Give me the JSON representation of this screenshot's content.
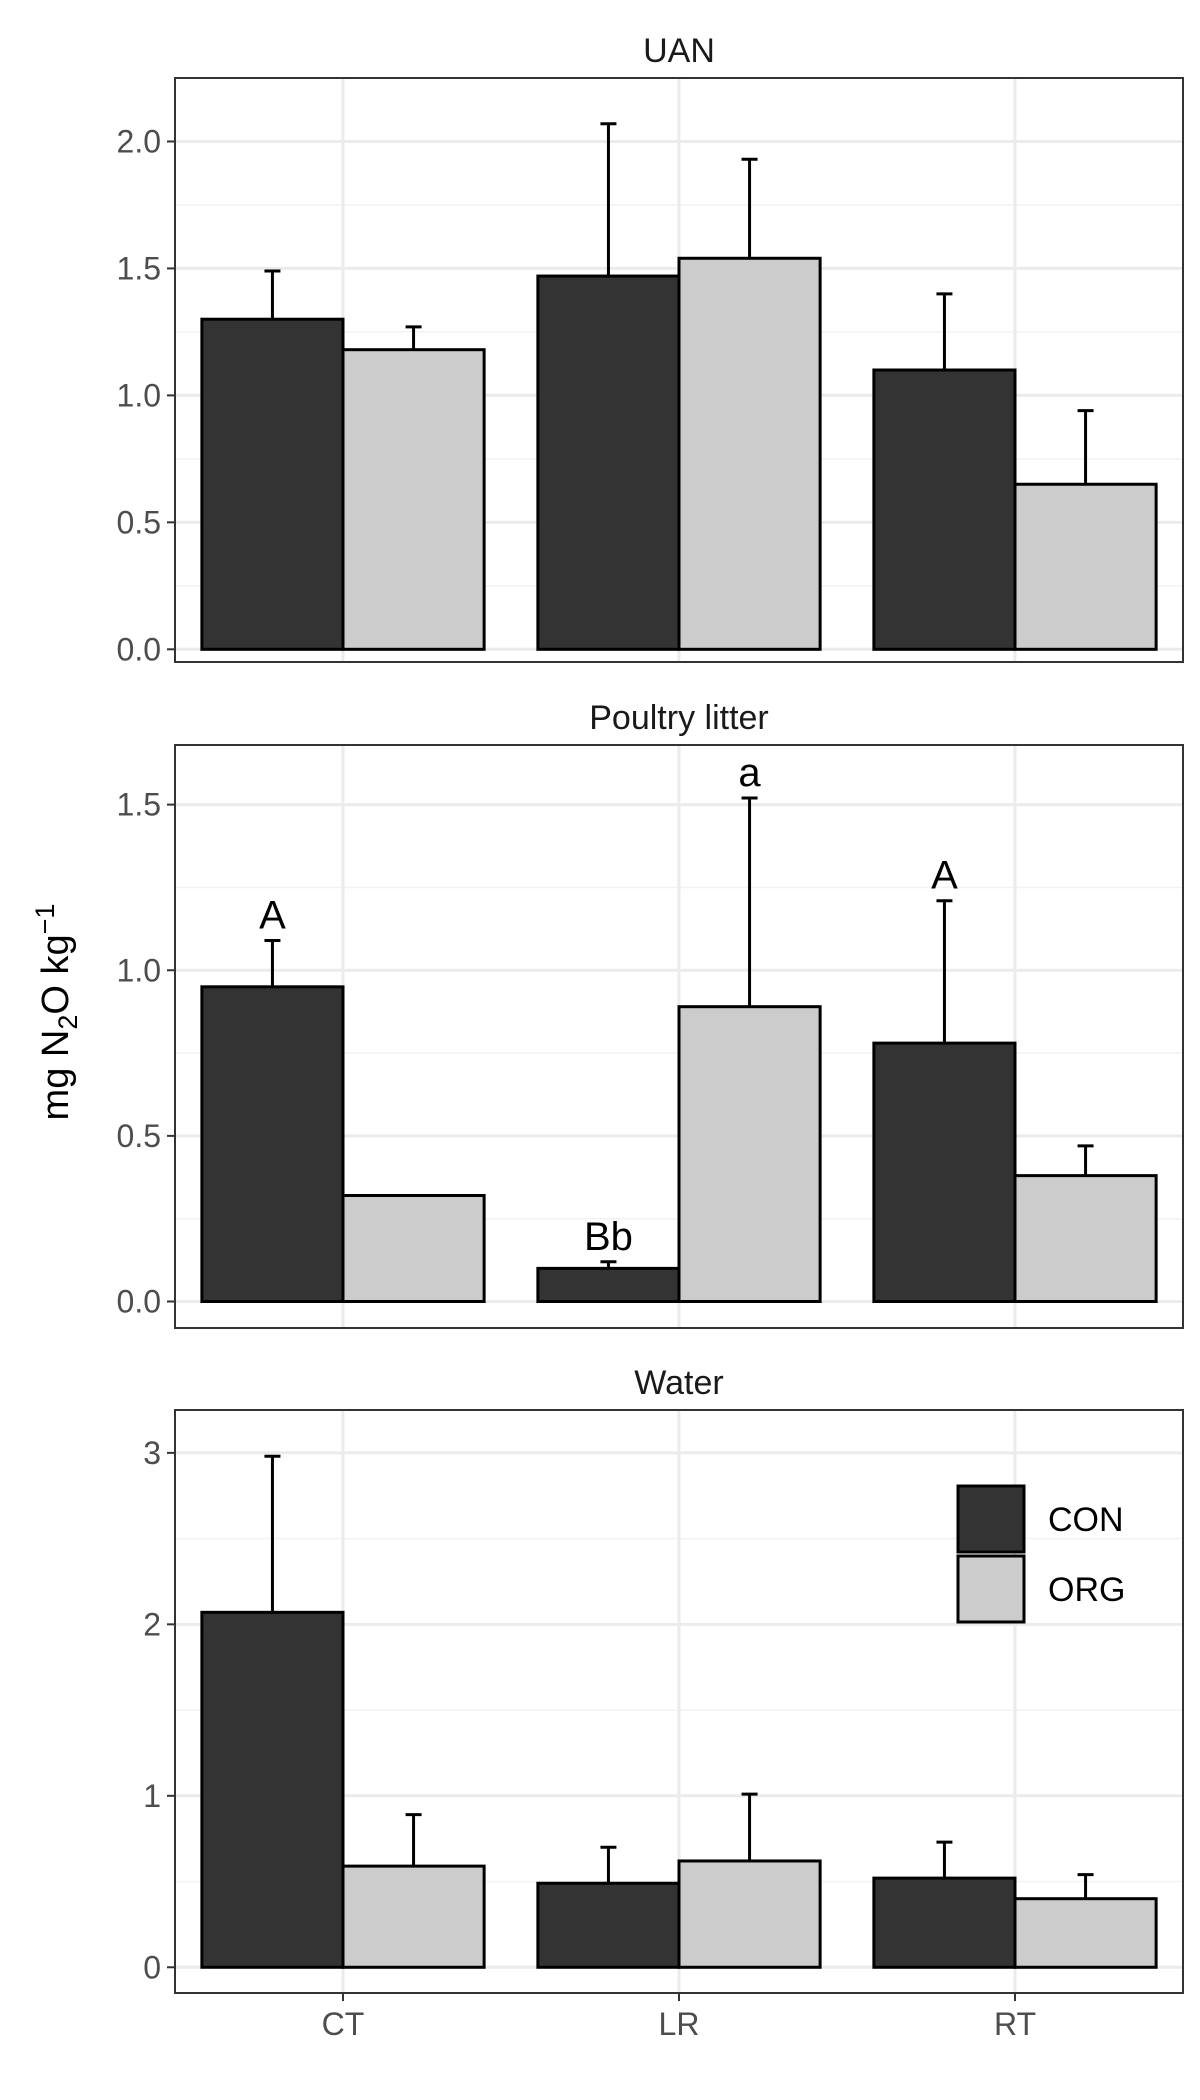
{
  "chart_data": {
    "type": "bar",
    "ylabel": {
      "prefix": "mg N",
      "sub": "2",
      "mid": "O kg",
      "sup": "−1"
    },
    "categories": [
      "CT",
      "LR",
      "RT"
    ],
    "legend": {
      "placement": "top-right of bottom panel",
      "entries": [
        {
          "name": "CON",
          "color": "#333333"
        },
        {
          "name": "ORG",
          "color": "#cccccc"
        }
      ]
    },
    "panels": [
      {
        "title": "UAN",
        "ylim": [
          -0.05,
          2.25
        ],
        "yticks": [
          {
            "v": 0,
            "label": "0.0"
          },
          {
            "v": 0.5,
            "label": "0.5"
          },
          {
            "v": 1.0,
            "label": "1.0"
          },
          {
            "v": 1.5,
            "label": "1.5"
          },
          {
            "v": 2.0,
            "label": "2.0"
          }
        ],
        "series": [
          {
            "name": "CON",
            "values": [
              1.3,
              1.47,
              1.1
            ],
            "errors": [
              1.49,
              2.07,
              1.4
            ],
            "annotations": [
              "",
              "",
              ""
            ]
          },
          {
            "name": "ORG",
            "values": [
              1.18,
              1.54,
              0.65
            ],
            "errors": [
              1.27,
              1.93,
              0.94
            ],
            "annotations": [
              "",
              "",
              ""
            ]
          }
        ]
      },
      {
        "title": "Poultry litter",
        "ylim": [
          -0.08,
          1.68
        ],
        "yticks": [
          {
            "v": 0,
            "label": "0.0"
          },
          {
            "v": 0.5,
            "label": "0.5"
          },
          {
            "v": 1.0,
            "label": "1.0"
          },
          {
            "v": 1.5,
            "label": "1.5"
          }
        ],
        "series": [
          {
            "name": "CON",
            "values": [
              0.95,
              0.1,
              0.78
            ],
            "errors": [
              1.09,
              0.12,
              1.21
            ],
            "annotations": [
              "A",
              "Bb",
              "A"
            ]
          },
          {
            "name": "ORG",
            "values": [
              0.32,
              0.89,
              0.38
            ],
            "errors": [
              0.32,
              1.52,
              0.47
            ],
            "annotations": [
              "",
              "a",
              ""
            ]
          }
        ]
      },
      {
        "title": "Water",
        "ylim": [
          -0.15,
          3.25
        ],
        "yticks": [
          {
            "v": 0,
            "label": "0"
          },
          {
            "v": 1,
            "label": "1"
          },
          {
            "v": 2,
            "label": "2"
          },
          {
            "v": 3,
            "label": "3"
          }
        ],
        "series": [
          {
            "name": "CON",
            "values": [
              2.07,
              0.49,
              0.52
            ],
            "errors": [
              2.98,
              0.7,
              0.73
            ],
            "annotations": [
              "",
              "",
              ""
            ]
          },
          {
            "name": "ORG",
            "values": [
              0.59,
              0.62,
              0.4
            ],
            "errors": [
              0.89,
              1.01,
              0.54
            ],
            "annotations": [
              "",
              "",
              ""
            ]
          }
        ]
      }
    ]
  }
}
